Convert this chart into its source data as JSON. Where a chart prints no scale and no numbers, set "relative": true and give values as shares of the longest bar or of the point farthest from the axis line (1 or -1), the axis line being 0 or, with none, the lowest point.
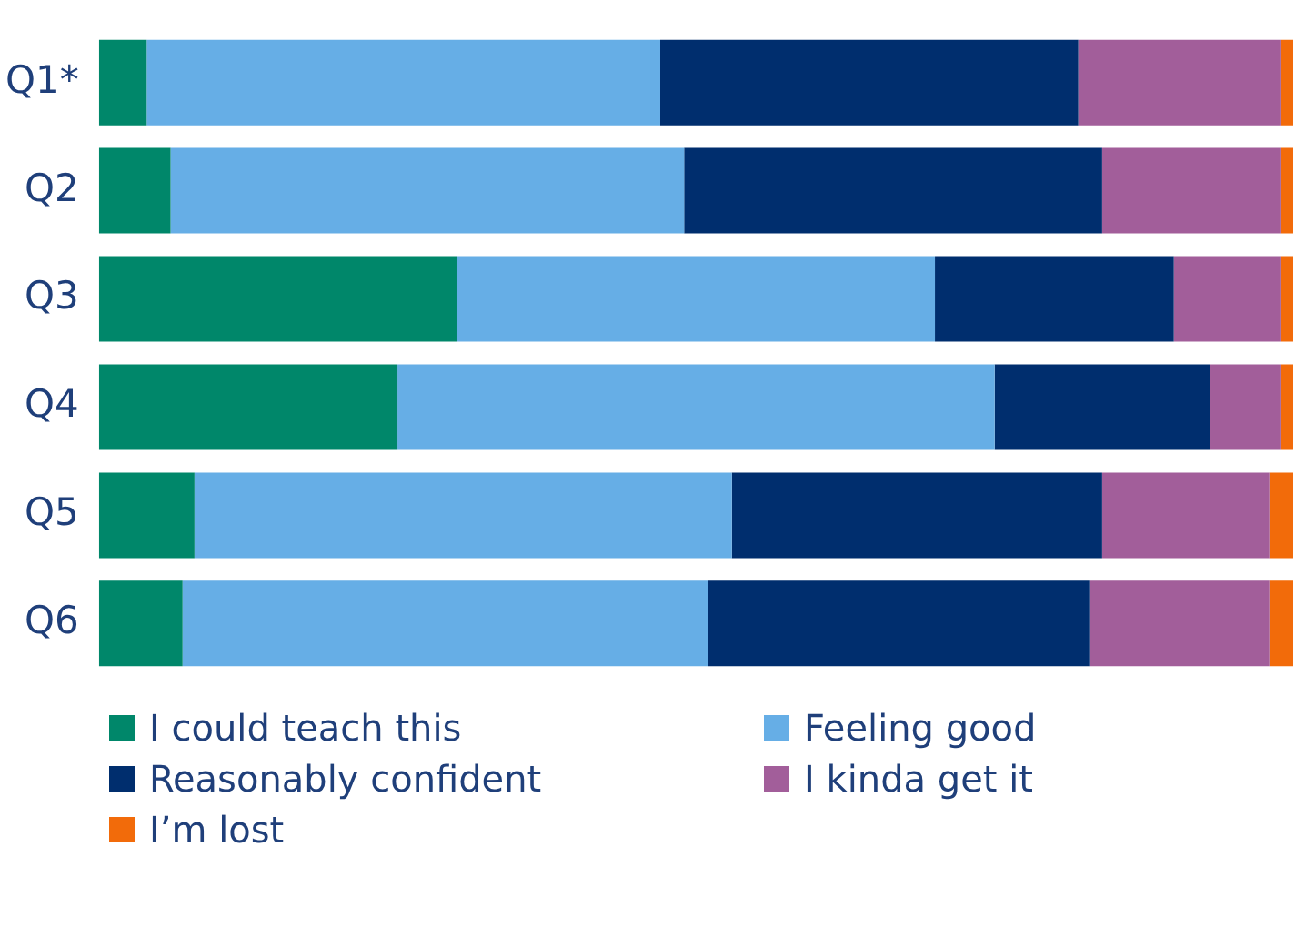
{
  "chart_data": {
    "type": "bar",
    "orientation": "horizontal",
    "stacked": true,
    "relative": true,
    "legend": "bottom",
    "categories": [
      "Q1*",
      "Q2",
      "Q3",
      "Q4",
      "Q5",
      "Q6"
    ],
    "series": [
      {
        "name": "I could teach this",
        "color": "#00876a",
        "values": [
          0.04,
          0.06,
          0.3,
          0.25,
          0.08,
          0.07
        ]
      },
      {
        "name": "Feeling good",
        "color": "#66aee6",
        "values": [
          0.43,
          0.43,
          0.4,
          0.5,
          0.45,
          0.44
        ]
      },
      {
        "name": "Reasonably confident",
        "color": "#002e6e",
        "values": [
          0.35,
          0.35,
          0.2,
          0.18,
          0.31,
          0.32
        ]
      },
      {
        "name": "I kinda get it",
        "color": "#a25e9a",
        "values": [
          0.17,
          0.15,
          0.09,
          0.06,
          0.14,
          0.15
        ]
      },
      {
        "name": "I’m lost",
        "color": "#f26b0a",
        "values": [
          0.01,
          0.01,
          0.01,
          0.01,
          0.02,
          0.02
        ]
      }
    ]
  }
}
